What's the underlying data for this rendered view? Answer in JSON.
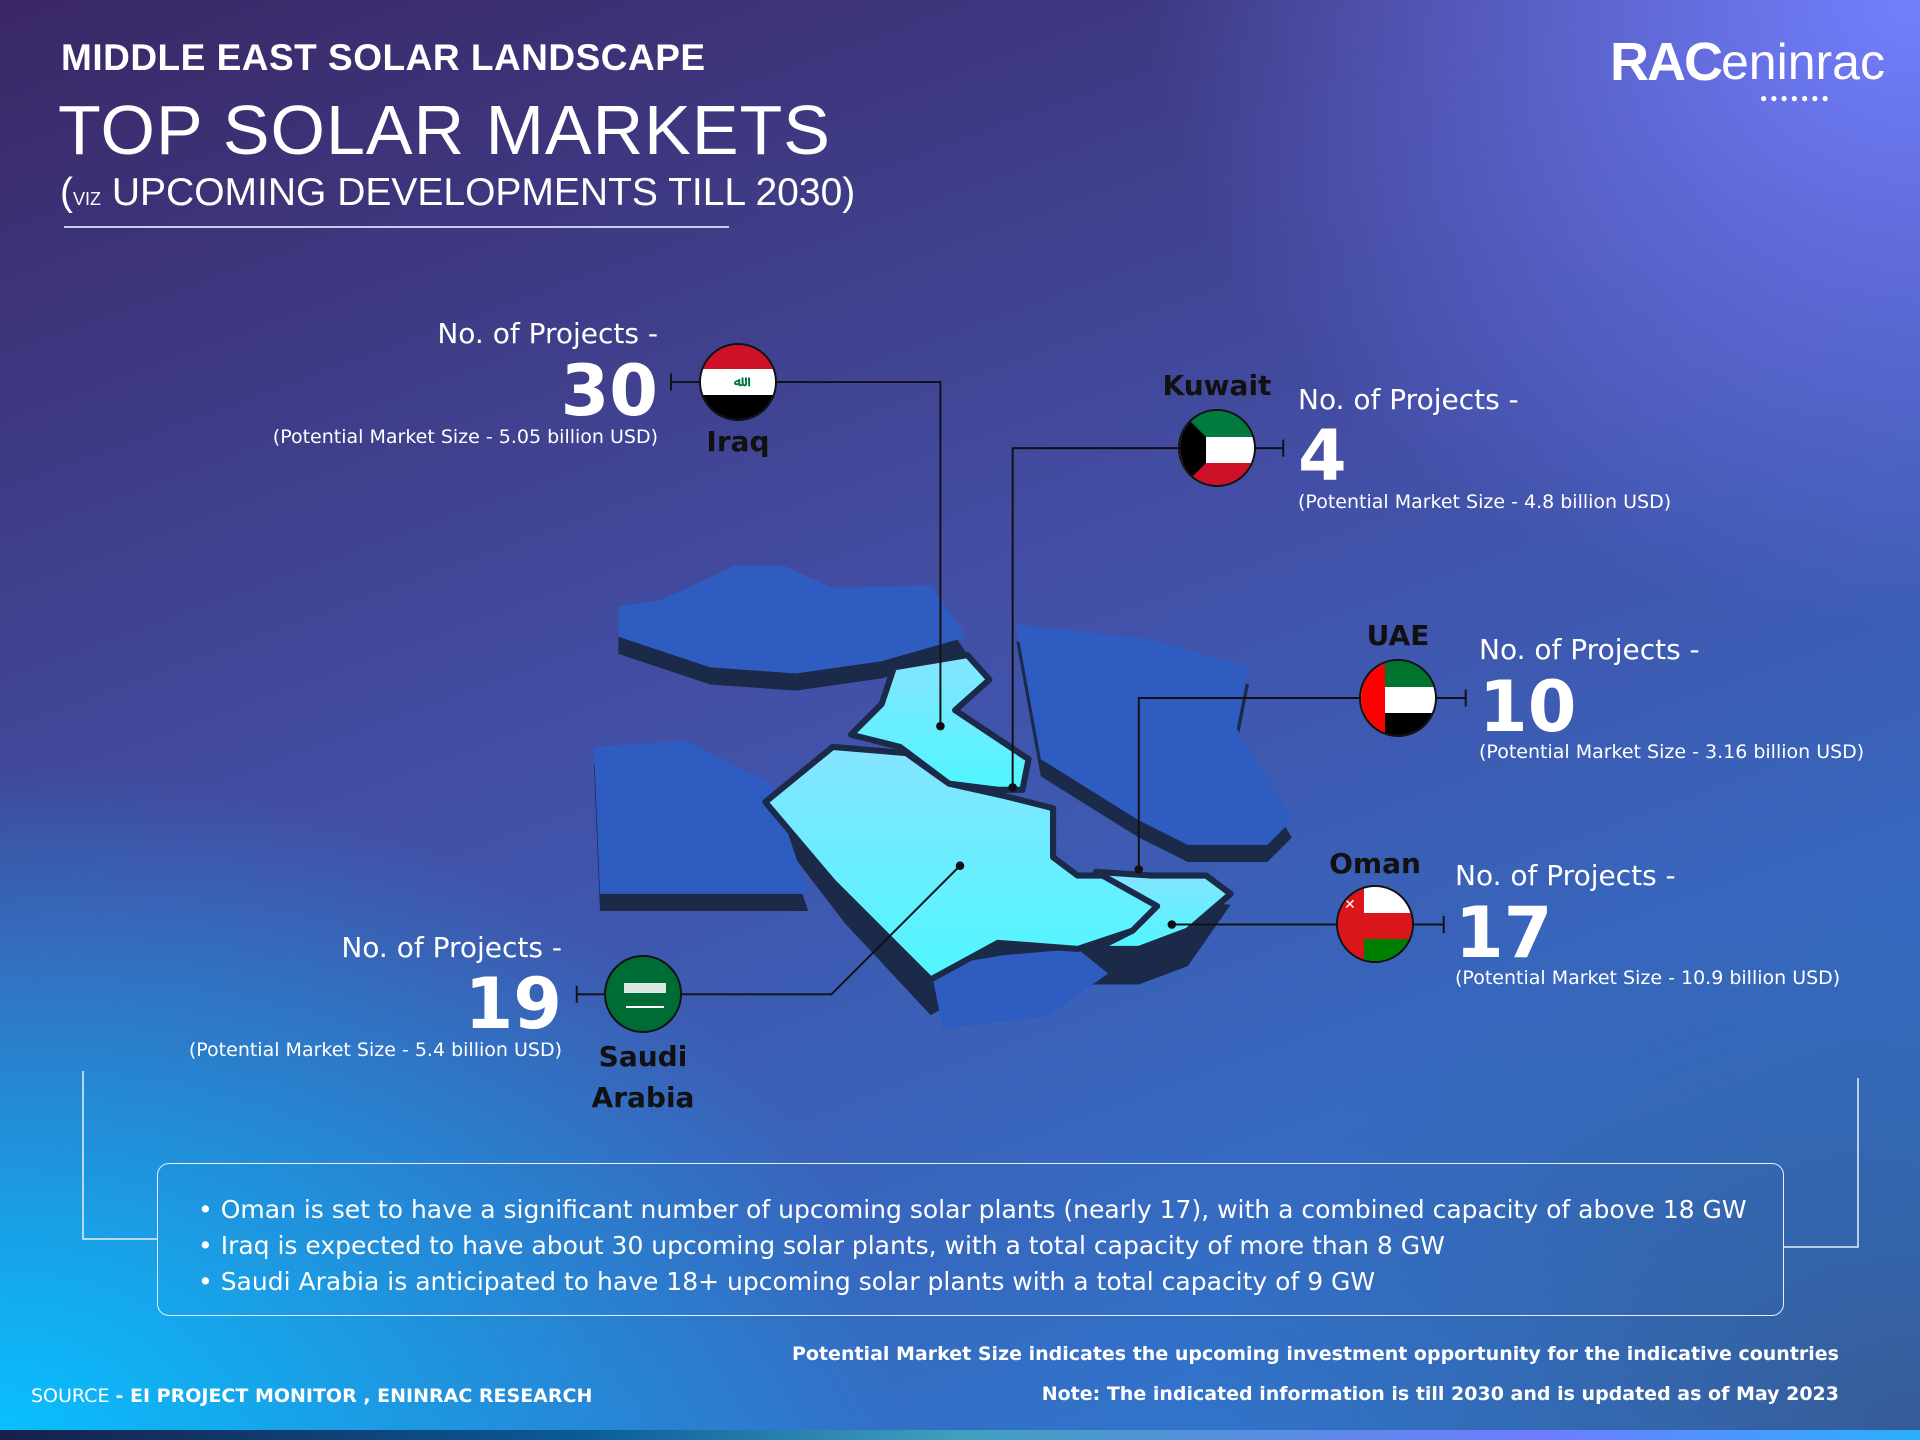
{
  "header": {
    "kicker": "MIDDLE EAST SOLAR LANDSCAPE",
    "title": "TOP SOLAR MARKETS",
    "subtitle_open": "(",
    "subtitle_viz": "VIZ",
    "subtitle": "UPCOMING DEVELOPMENTS TILL 2030)"
  },
  "logo": {
    "text_bold": "RAC",
    "text": "eninrac"
  },
  "countries": [
    {
      "name": "Iraq",
      "label": "No. of Projects -",
      "projects": "30",
      "market": "(Potential Market Size - 5.05 billion USD)"
    },
    {
      "name": "Kuwait",
      "label": "No. of Projects -",
      "projects": "4",
      "market": "(Potential Market Size - 4.8 billion USD)"
    },
    {
      "name": "UAE",
      "label": "No. of Projects -",
      "projects": "10",
      "market": "(Potential Market Size - 3.16 billion USD)"
    },
    {
      "name": "Oman",
      "label": "No. of Projects -",
      "projects": "17",
      "market": "(Potential Market Size - 10.9 billion USD)"
    },
    {
      "name_line1": "Saudi",
      "name_line2": "Arabia",
      "label": "No. of Projects -",
      "projects": "19",
      "market": "(Potential Market Size - 5.4 billion USD)"
    }
  ],
  "highlights": [
    "• Oman is set to have a significant number of upcoming solar plants (nearly 17), with a combined capacity of  above 18 GW",
    "• Iraq  is expected to have about 30 upcoming solar plants, with a total capacity of more than 8 GW",
    "• Saudi Arabia  is anticipated to have 18+ upcoming solar plants with a total capacity of  9 GW"
  ],
  "footer": {
    "source_prefix": "SOURCE ",
    "source": "- EI PROJECT MONITOR , ENINRAC RESEARCH",
    "note1": "Potential Market Size indicates the upcoming investment opportunity for the indicative countries",
    "note2": "Note: The indicated information is till 2030 and is updated as of May 2023"
  },
  "colors": {
    "highlight_land": "#6ef0ff",
    "other_land": "#2f5cc0",
    "land_shadow": "#1a2a48"
  }
}
